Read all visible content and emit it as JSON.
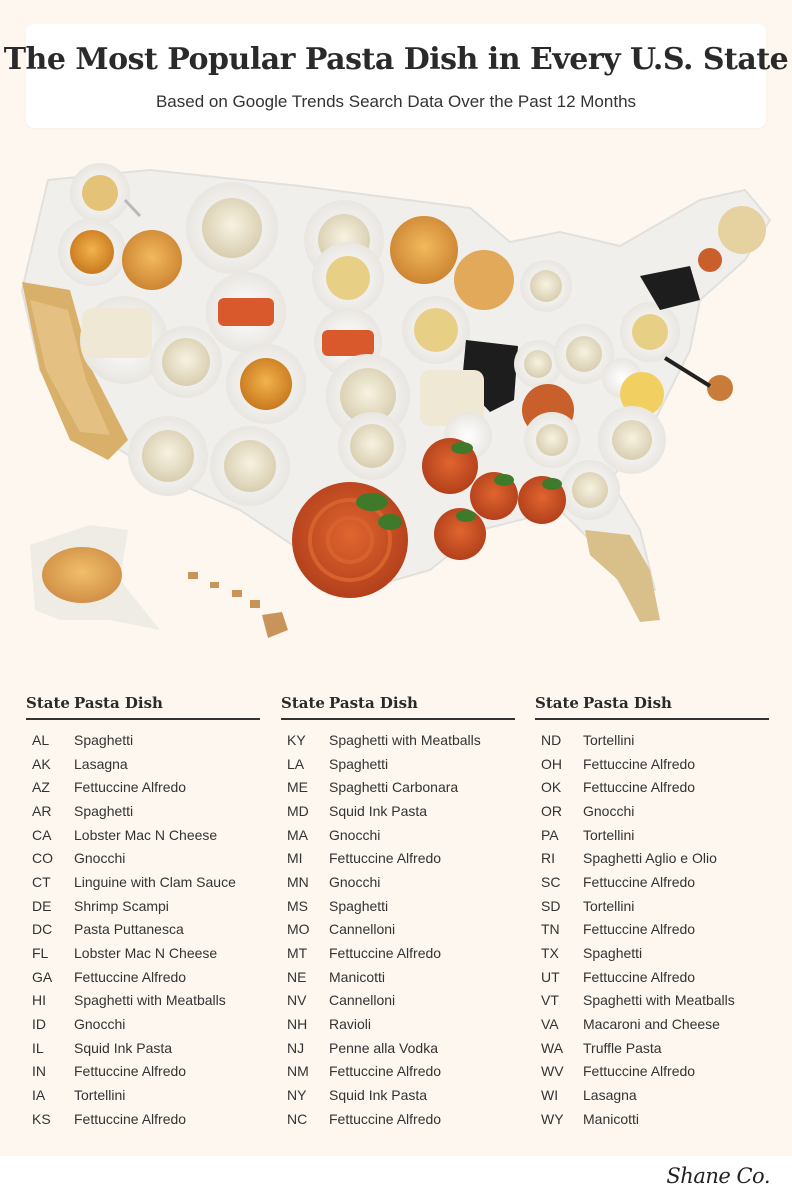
{
  "header": {
    "title": "The Most Popular Pasta Dish in Every U.S. State",
    "subtitle": "Based on Google Trends Search Data Over the Past 12 Months"
  },
  "colors": {
    "background": "#fdf7ef",
    "card": "#ffffff",
    "text": "#2a2a2a",
    "sauce_red": "#c94a24",
    "pasta_cream": "#f1ecdc",
    "pasta_gold": "#e8a33a",
    "ink_black": "#1d1d1d",
    "basil_green": "#3f7a2a"
  },
  "table": {
    "state_header": "State",
    "dish_header": "Pasta Dish",
    "columns": [
      [
        {
          "state": "AL",
          "dish": "Spaghetti"
        },
        {
          "state": "AK",
          "dish": "Lasagna"
        },
        {
          "state": "AZ",
          "dish": "Fettuccine Alfredo"
        },
        {
          "state": "AR",
          "dish": "Spaghetti"
        },
        {
          "state": "CA",
          "dish": "Lobster Mac N Cheese"
        },
        {
          "state": "CO",
          "dish": "Gnocchi"
        },
        {
          "state": "CT",
          "dish": "Linguine with Clam Sauce"
        },
        {
          "state": "DE",
          "dish": "Shrimp Scampi"
        },
        {
          "state": "DC",
          "dish": "Pasta Puttanesca"
        },
        {
          "state": "FL",
          "dish": "Lobster Mac N Cheese"
        },
        {
          "state": "GA",
          "dish": "Fettuccine Alfredo"
        },
        {
          "state": "HI",
          "dish": "Spaghetti with Meatballs"
        },
        {
          "state": "ID",
          "dish": "Gnocchi"
        },
        {
          "state": "IL",
          "dish": "Squid Ink Pasta"
        },
        {
          "state": "IN",
          "dish": "Fettuccine Alfredo"
        },
        {
          "state": "IA",
          "dish": "Tortellini"
        },
        {
          "state": "KS",
          "dish": "Fettuccine Alfredo"
        }
      ],
      [
        {
          "state": "KY",
          "dish": "Spaghetti with Meatballs"
        },
        {
          "state": "LA",
          "dish": "Spaghetti"
        },
        {
          "state": "ME",
          "dish": "Spaghetti Carbonara"
        },
        {
          "state": "MD",
          "dish": "Squid Ink Pasta"
        },
        {
          "state": "MA",
          "dish": "Gnocchi"
        },
        {
          "state": "MI",
          "dish": "Fettuccine Alfredo"
        },
        {
          "state": "MN",
          "dish": "Gnocchi"
        },
        {
          "state": "MS",
          "dish": "Spaghetti"
        },
        {
          "state": "MO",
          "dish": "Cannelloni"
        },
        {
          "state": "MT",
          "dish": "Fettuccine Alfredo"
        },
        {
          "state": "NE",
          "dish": "Manicotti"
        },
        {
          "state": "NV",
          "dish": "Cannelloni"
        },
        {
          "state": "NH",
          "dish": "Ravioli"
        },
        {
          "state": "NJ",
          "dish": "Penne alla Vodka"
        },
        {
          "state": "NM",
          "dish": "Fettuccine Alfredo"
        },
        {
          "state": "NY",
          "dish": "Squid Ink Pasta"
        },
        {
          "state": "NC",
          "dish": "Fettuccine Alfredo"
        }
      ],
      [
        {
          "state": "ND",
          "dish": "Tortellini"
        },
        {
          "state": "OH",
          "dish": "Fettuccine Alfredo"
        },
        {
          "state": "OK",
          "dish": "Fettuccine Alfredo"
        },
        {
          "state": "OR",
          "dish": "Gnocchi"
        },
        {
          "state": "PA",
          "dish": "Tortellini"
        },
        {
          "state": "RI",
          "dish": "Spaghetti Aglio e Olio"
        },
        {
          "state": "SC",
          "dish": "Fettuccine Alfredo"
        },
        {
          "state": "SD",
          "dish": "Tortellini"
        },
        {
          "state": "TN",
          "dish": "Fettuccine Alfredo"
        },
        {
          "state": "TX",
          "dish": "Spaghetti"
        },
        {
          "state": "UT",
          "dish": "Fettuccine Alfredo"
        },
        {
          "state": "VT",
          "dish": "Spaghetti with Meatballs"
        },
        {
          "state": "VA",
          "dish": "Macaroni and Cheese"
        },
        {
          "state": "WA",
          "dish": "Truffle Pasta"
        },
        {
          "state": "WV",
          "dish": "Fettuccine Alfredo"
        },
        {
          "state": "WI",
          "dish": "Lasagna"
        },
        {
          "state": "WY",
          "dish": "Manicotti"
        }
      ]
    ]
  },
  "footer": {
    "logo_text": "Shane Co."
  }
}
